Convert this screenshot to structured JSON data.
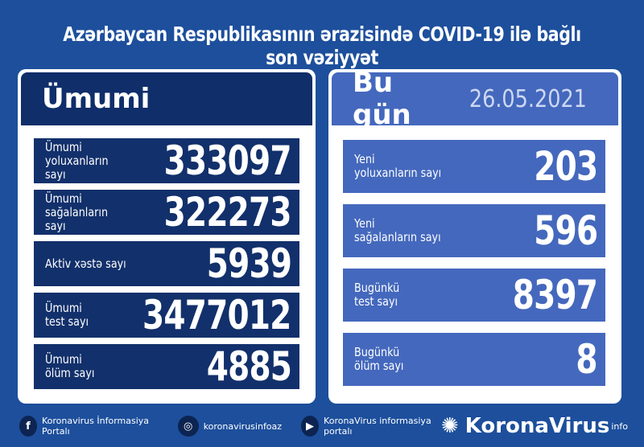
{
  "title": "Azərbaycan Respublikasının ərazisində COVID-19 ilə bağlı son vəziyyət",
  "left": {
    "header": "Ümumi",
    "rows": [
      {
        "label1": "Ümumi",
        "label2": "yoluxanların sayı",
        "value": "333097"
      },
      {
        "label1": "Ümumi",
        "label2": "sağalanların sayı",
        "value": "322273"
      },
      {
        "label1": "Aktiv xəstə sayı",
        "label2": "",
        "value": "5939"
      },
      {
        "label1": "Ümumi",
        "label2": "test sayı",
        "value": "3477012"
      },
      {
        "label1": "Ümumi",
        "label2": "ölüm sayı",
        "value": "4885"
      }
    ]
  },
  "right": {
    "header": "Bu gün",
    "date": "26.05.2021",
    "rows": [
      {
        "label1": "Yeni",
        "label2": "yoluxanların sayı",
        "value": "203"
      },
      {
        "label1": "Yeni",
        "label2": "sağalanların sayı",
        "value": "596"
      },
      {
        "label1": "Bugünkü",
        "label2": "test sayı",
        "value": "8397"
      },
      {
        "label1": "Bugünkü",
        "label2": "ölüm sayı",
        "value": "8"
      }
    ]
  },
  "footer": {
    "facebook": "Koronavirus İnformasiya Portalı",
    "instagram": "koronavirusinfoaz",
    "youtube": "KoronaVirus informasiya portalı",
    "brand": "KoronaVirus",
    "brand_sup": "info"
  }
}
